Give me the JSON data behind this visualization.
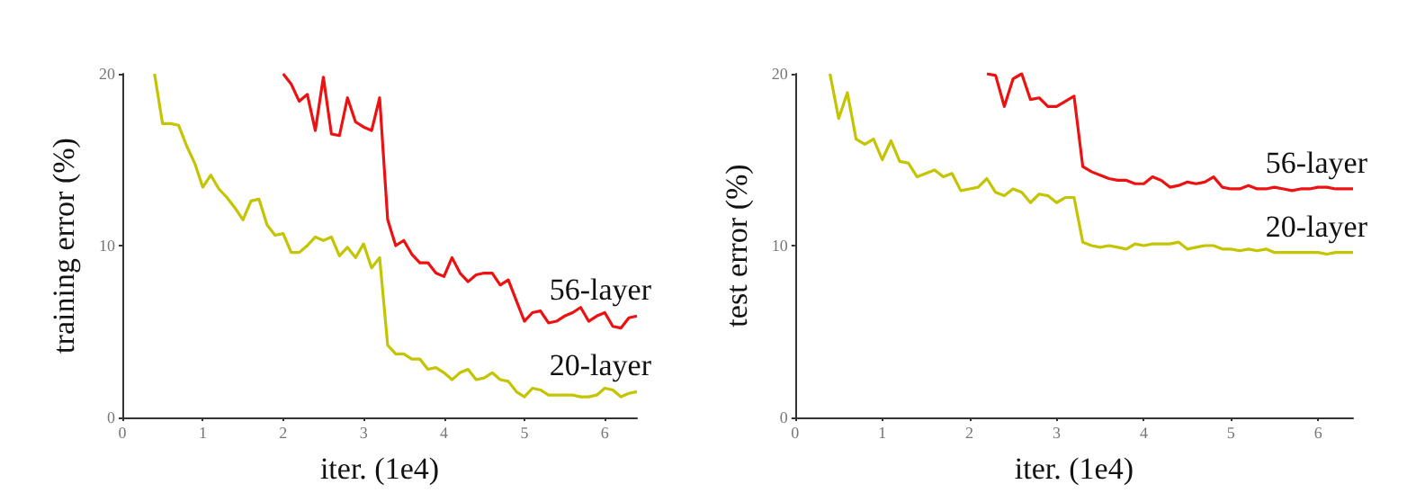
{
  "chart_data": [
    {
      "type": "line",
      "xlabel": "iter. (1e4)",
      "ylabel": "training error (%)",
      "xlim": [
        0,
        6.4
      ],
      "xticks": [
        0,
        1,
        2,
        3,
        4,
        5,
        6
      ],
      "ylim": [
        0,
        20
      ],
      "yticks": [
        0,
        10,
        20
      ],
      "grid": false,
      "legend": false,
      "marker": "none",
      "line_style": "solid",
      "x": [
        0.4,
        0.5,
        0.6,
        0.7,
        0.8,
        0.9,
        1.0,
        1.1,
        1.2,
        1.3,
        1.4,
        1.5,
        1.6,
        1.7,
        1.8,
        1.9,
        2.0,
        2.1,
        2.2,
        2.3,
        2.4,
        2.5,
        2.6,
        2.7,
        2.8,
        2.9,
        3.0,
        3.1,
        3.2,
        3.3,
        3.4,
        3.5,
        3.6,
        3.7,
        3.8,
        3.9,
        4.0,
        4.1,
        4.2,
        4.3,
        4.4,
        4.5,
        4.6,
        4.7,
        4.8,
        4.9,
        5.0,
        5.1,
        5.2,
        5.3,
        5.4,
        5.5,
        5.6,
        5.7,
        5.8,
        5.9,
        6.0,
        6.1,
        6.2,
        6.3,
        6.4
      ],
      "series": [
        {
          "name": "56-layer",
          "color": "#ee1111",
          "values": [
            null,
            null,
            null,
            null,
            null,
            null,
            null,
            null,
            null,
            null,
            null,
            null,
            null,
            null,
            null,
            null,
            20,
            19.4,
            18.4,
            18.8,
            16.7,
            19.8,
            16.5,
            16.4,
            18.6,
            17.2,
            16.9,
            16.7,
            18.6,
            11.5,
            10.0,
            10.3,
            9.5,
            9.0,
            9.0,
            8.4,
            8.2,
            9.3,
            8.4,
            7.9,
            8.3,
            8.4,
            8.4,
            7.7,
            8.0,
            6.8,
            5.6,
            6.1,
            6.2,
            5.5,
            5.6,
            5.9,
            6.1,
            6.4,
            5.6,
            5.9,
            6.1,
            5.3,
            5.2,
            5.8,
            5.9
          ]
        },
        {
          "name": "20-layer",
          "color": "#c4c400",
          "values": [
            20,
            17.1,
            17.1,
            17.0,
            15.8,
            14.8,
            13.4,
            14.1,
            13.3,
            12.8,
            12.2,
            11.5,
            12.6,
            12.7,
            11.2,
            10.6,
            10.7,
            9.6,
            9.6,
            10.0,
            10.5,
            10.3,
            10.5,
            9.4,
            9.9,
            9.3,
            10.1,
            8.7,
            9.3,
            4.2,
            3.7,
            3.7,
            3.4,
            3.4,
            2.8,
            2.9,
            2.6,
            2.2,
            2.6,
            2.8,
            2.2,
            2.3,
            2.6,
            2.2,
            2.1,
            1.5,
            1.2,
            1.7,
            1.6,
            1.3,
            1.3,
            1.3,
            1.3,
            1.2,
            1.2,
            1.3,
            1.7,
            1.6,
            1.2,
            1.4,
            1.5
          ]
        }
      ]
    },
    {
      "type": "line",
      "xlabel": "iter. (1e4)",
      "ylabel": "test error (%)",
      "xlim": [
        0,
        6.4
      ],
      "xticks": [
        0,
        1,
        2,
        3,
        4,
        5,
        6
      ],
      "ylim": [
        0,
        20
      ],
      "yticks": [
        0,
        10,
        20
      ],
      "grid": false,
      "legend": false,
      "marker": "none",
      "line_style": "solid",
      "x": [
        0.4,
        0.5,
        0.6,
        0.7,
        0.8,
        0.9,
        1.0,
        1.1,
        1.2,
        1.3,
        1.4,
        1.5,
        1.6,
        1.7,
        1.8,
        1.9,
        2.0,
        2.1,
        2.2,
        2.3,
        2.4,
        2.5,
        2.6,
        2.7,
        2.8,
        2.9,
        3.0,
        3.1,
        3.2,
        3.3,
        3.4,
        3.5,
        3.6,
        3.7,
        3.8,
        3.9,
        4.0,
        4.1,
        4.2,
        4.3,
        4.4,
        4.5,
        4.6,
        4.7,
        4.8,
        4.9,
        5.0,
        5.1,
        5.2,
        5.3,
        5.4,
        5.5,
        5.6,
        5.7,
        5.8,
        5.9,
        6.0,
        6.1,
        6.2,
        6.3,
        6.4
      ],
      "series": [
        {
          "name": "56-layer",
          "color": "#ee1111",
          "values": [
            null,
            null,
            null,
            null,
            null,
            null,
            null,
            null,
            null,
            null,
            null,
            null,
            null,
            null,
            null,
            null,
            null,
            null,
            20.0,
            19.9,
            18.1,
            19.7,
            20.0,
            18.5,
            18.6,
            18.1,
            18.1,
            18.4,
            18.7,
            14.6,
            14.3,
            14.1,
            13.9,
            13.8,
            13.8,
            13.6,
            13.6,
            14.0,
            13.8,
            13.4,
            13.5,
            13.7,
            13.6,
            13.7,
            14.0,
            13.4,
            13.3,
            13.3,
            13.5,
            13.3,
            13.3,
            13.4,
            13.3,
            13.2,
            13.3,
            13.3,
            13.4,
            13.4,
            13.3,
            13.3,
            13.3
          ]
        },
        {
          "name": "20-layer",
          "color": "#c4c400",
          "values": [
            20,
            17.4,
            18.9,
            16.2,
            15.9,
            16.2,
            15.0,
            16.1,
            14.9,
            14.8,
            14.0,
            14.2,
            14.4,
            14.0,
            14.2,
            13.2,
            13.3,
            13.4,
            13.9,
            13.1,
            12.9,
            13.3,
            13.1,
            12.5,
            13.0,
            12.9,
            12.5,
            12.8,
            12.8,
            10.2,
            10.0,
            9.9,
            10.0,
            9.9,
            9.8,
            10.1,
            10.0,
            10.1,
            10.1,
            10.1,
            10.2,
            9.8,
            9.9,
            10.0,
            10.0,
            9.8,
            9.8,
            9.7,
            9.8,
            9.7,
            9.8,
            9.6,
            9.6,
            9.6,
            9.6,
            9.6,
            9.6,
            9.5,
            9.6,
            9.6,
            9.6
          ]
        }
      ]
    }
  ]
}
